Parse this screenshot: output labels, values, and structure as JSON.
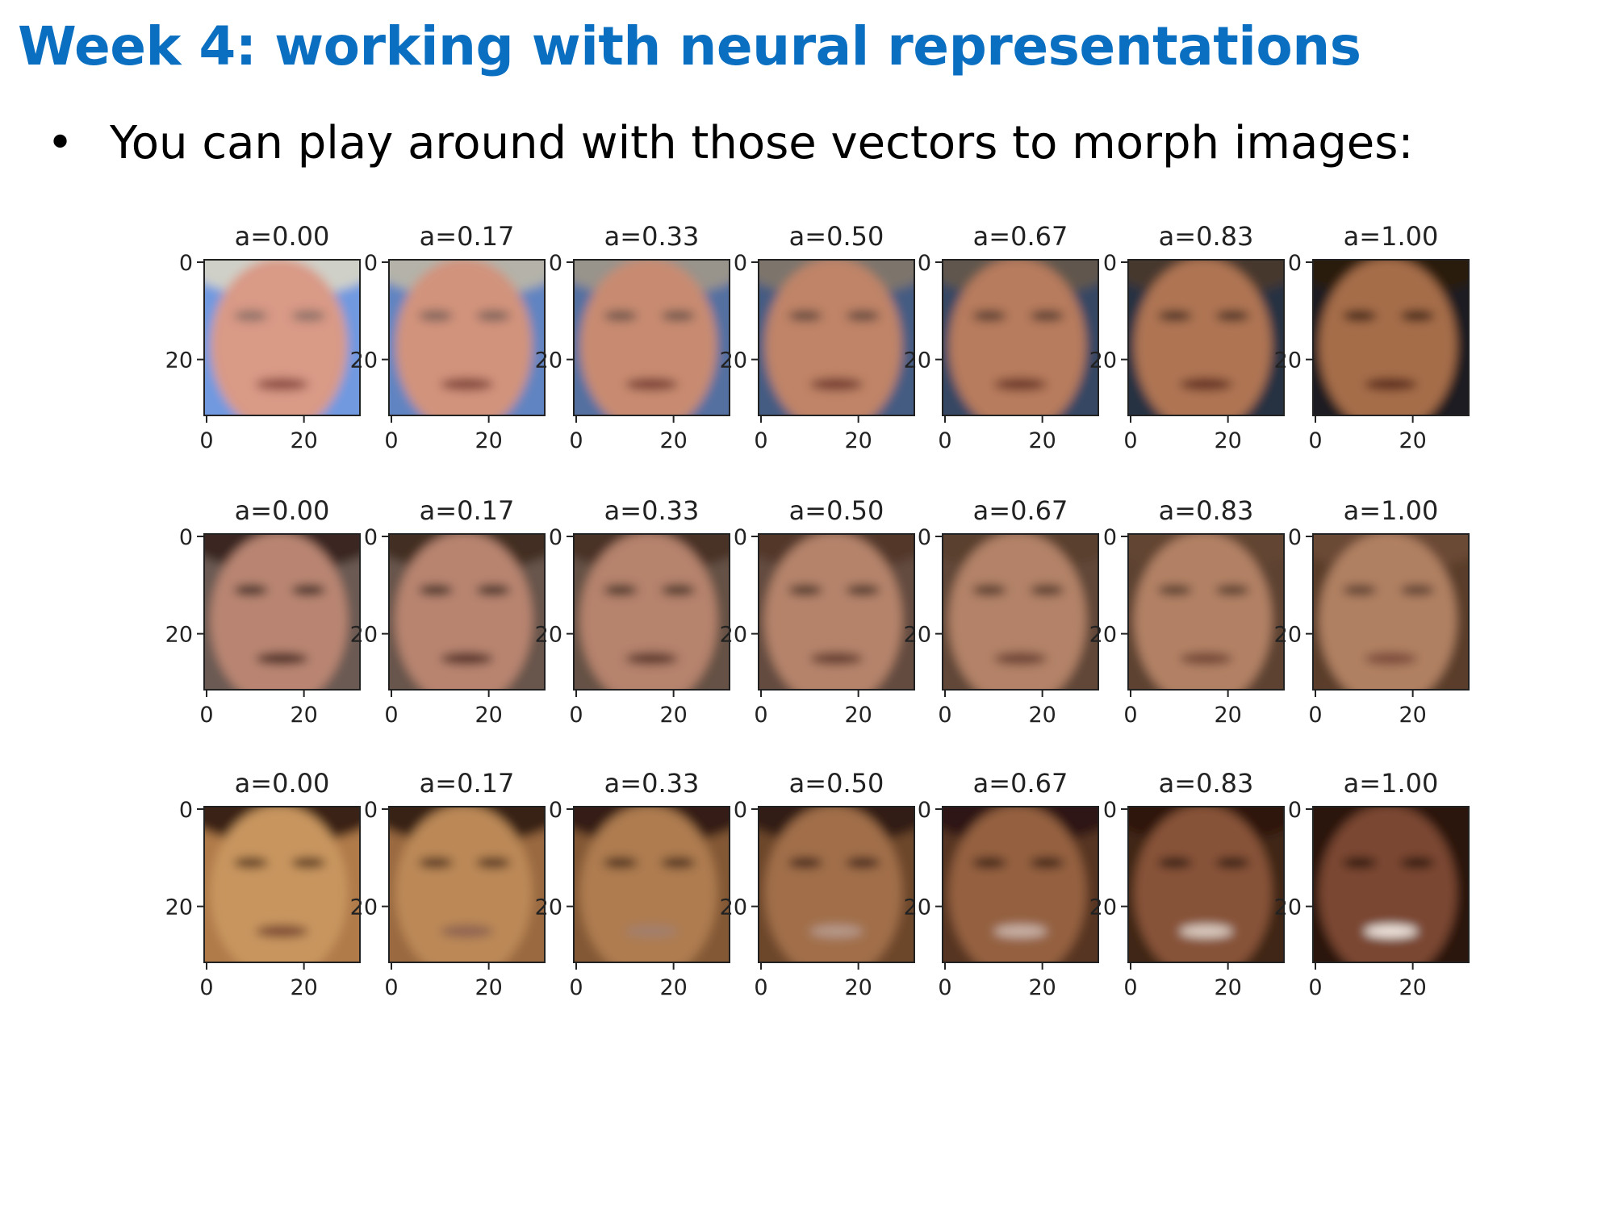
{
  "slide": {
    "title": "Week 4: working with neural representations",
    "bullet_marker": "•",
    "bullet_text": "You can play around with those vectors to morph images:"
  },
  "figure": {
    "panel_titles": [
      "a=0.00",
      "a=0.17",
      "a=0.33",
      "a=0.50",
      "a=0.67",
      "a=0.83",
      "a=1.00"
    ],
    "x_tick_labels": [
      "0",
      "20"
    ],
    "y_tick_labels": [
      "0",
      "20"
    ],
    "rows": [
      {
        "name": "row-1",
        "start_palette": {
          "skin": "#d99a86",
          "hair": "#cfd0c8",
          "background": "#6f99e0",
          "eyes": "#8a7068",
          "mouth": "#8a4a40"
        },
        "end_palette": {
          "skin": "#a66d48",
          "hair": "#2a1a10",
          "background": "#1a1d24",
          "eyes": "#3b2418",
          "mouth": "#5a2a1c"
        }
      },
      {
        "name": "row-2",
        "start_palette": {
          "skin": "#b98572",
          "hair": "#3a2820",
          "background": "#6b5a52",
          "eyes": "#3a2a24",
          "mouth": "#4a2a24"
        },
        "end_palette": {
          "skin": "#b08062",
          "hair": "#6a4a34",
          "background": "#5a3e2c",
          "eyes": "#5c4030",
          "mouth": "#7a4a3a"
        }
      },
      {
        "name": "row-3",
        "start_palette": {
          "skin": "#c8955e",
          "hair": "#3a2416",
          "background": "#b07a48",
          "eyes": "#5a3a24",
          "mouth": "#7a4a34"
        },
        "end_palette": {
          "skin": "#7a4632",
          "hair": "#2a1410",
          "background": "#2a1410",
          "eyes": "#2a1410",
          "mouth": "#f2e8e0"
        }
      }
    ]
  }
}
